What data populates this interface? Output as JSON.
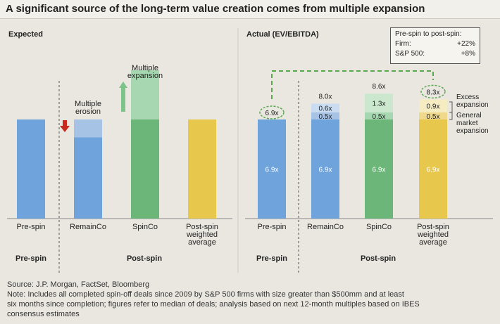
{
  "title": "A significant source of the long-term value creation comes from multiple expansion",
  "source": "Source: J.P. Morgan, FactSet, Bloomberg",
  "note_lines": [
    "Note: Includes all completed spin-off deals since 2009 by S&P 500 firms with size greater than $500mm and at least",
    "six months since completion; figures refer to median of deals; analysis based on next 12-month multiples based on IBES",
    "consensus estimates"
  ],
  "legend_box": {
    "title": "Pre-spin to post-spin:",
    "rows": [
      {
        "label": "Firm:",
        "value": "+22%"
      },
      {
        "label": "S&P 500:",
        "value": "+8%"
      }
    ]
  },
  "colors": {
    "blue": "#6fa3dc",
    "blue_light": "#a6c3e6",
    "green": "#6cb67a",
    "green_light": "#a7d7b0",
    "yellow": "#e7c84c",
    "yellow_band": "#f0d98a",
    "yellow_light": "#f5ecc2",
    "blue_excess": "#c9dcf1",
    "green_excess": "#cbe8cf",
    "arrow_red": "#c8281e",
    "arrow_green": "#7cc48a",
    "dashed": "#5aa84e"
  },
  "chart_data": [
    {
      "type": "bar",
      "title": "Expected",
      "categories": [
        "Pre-spin",
        "RemainCo",
        "SpinCo",
        "Post-spin weighted average"
      ],
      "groups": [
        "Pre-spin",
        "Post-spin"
      ],
      "annotations": [
        "Multiple erosion",
        "Multiple expansion"
      ],
      "relative_values": {
        "base": 1.0,
        "remainco_erosion": -0.18,
        "spinco_expansion": 0.5,
        "weighted_average": 1.0
      }
    },
    {
      "type": "bar",
      "title": "Actual (EV/EBITDA)",
      "categories": [
        "Pre-spin",
        "RemainCo",
        "SpinCo",
        "Post-spin weighted average"
      ],
      "groups": [
        "Pre-spin",
        "Post-spin"
      ],
      "series": [
        {
          "name": "Base",
          "values": [
            6.9,
            6.9,
            6.9,
            6.9
          ]
        },
        {
          "name": "General market expansion",
          "values": [
            0,
            0.5,
            0.5,
            0.5
          ]
        },
        {
          "name": "Excess expansion",
          "values": [
            0,
            0.6,
            1.3,
            0.9
          ]
        }
      ],
      "totals": [
        6.9,
        8.0,
        8.6,
        8.3
      ],
      "legend": [
        "Excess expansion",
        "General market expansion"
      ],
      "ylim": [
        0,
        9.0
      ]
    }
  ]
}
